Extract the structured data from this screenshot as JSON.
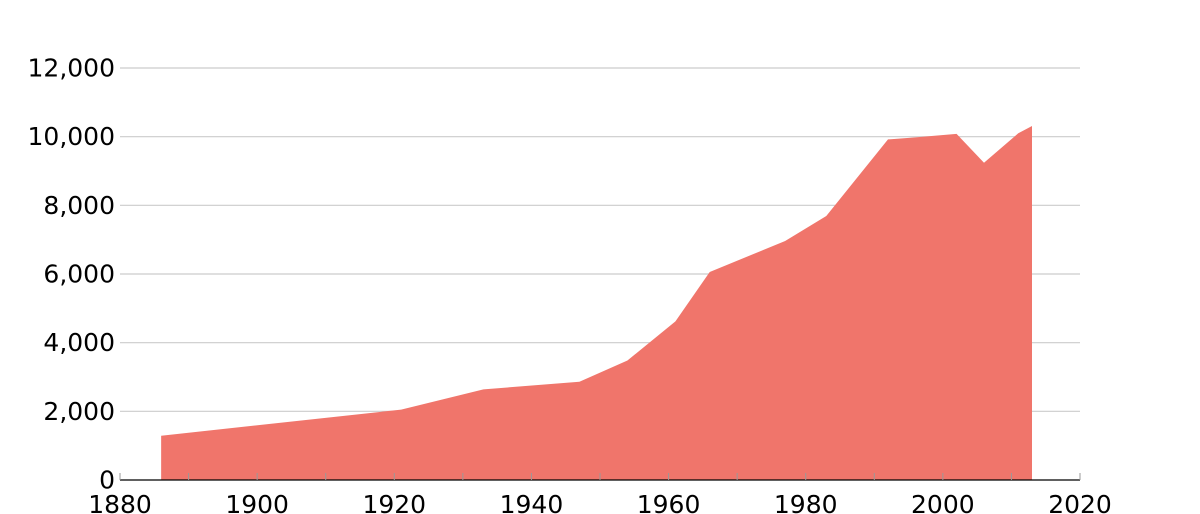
{
  "chart_data": {
    "type": "area",
    "title": "",
    "xlabel": "",
    "ylabel": "",
    "xlim": [
      1880,
      2020
    ],
    "ylim": [
      0,
      12000
    ],
    "x_ticks": [
      1880,
      1900,
      1920,
      1940,
      1960,
      1980,
      2000,
      2020
    ],
    "x_tick_labels": [
      "1880",
      "1900",
      "1920",
      "1940",
      "1960",
      "1980",
      "2000",
      "2020"
    ],
    "y_ticks": [
      0,
      2000,
      4000,
      6000,
      8000,
      10000,
      12000
    ],
    "y_tick_labels": [
      "0",
      "2,000",
      "4,000",
      "6,000",
      "8,000",
      "10,000",
      "12,000"
    ],
    "x_minor_ticks": [
      1890,
      1910,
      1930,
      1950,
      1970,
      1990,
      2010
    ],
    "grid": true,
    "legend": "none",
    "color": "#f0756b",
    "series": [
      {
        "x": [
          1886,
          1921,
          1933,
          1947,
          1954,
          1961,
          1966,
          1977,
          1983,
          1992,
          1996,
          2002,
          2006,
          2011,
          2013
        ],
        "values": [
          1290,
          2050,
          2640,
          2860,
          3480,
          4620,
          6060,
          6960,
          7690,
          9920,
          9980,
          10080,
          9240,
          10100,
          10310
        ]
      }
    ]
  }
}
